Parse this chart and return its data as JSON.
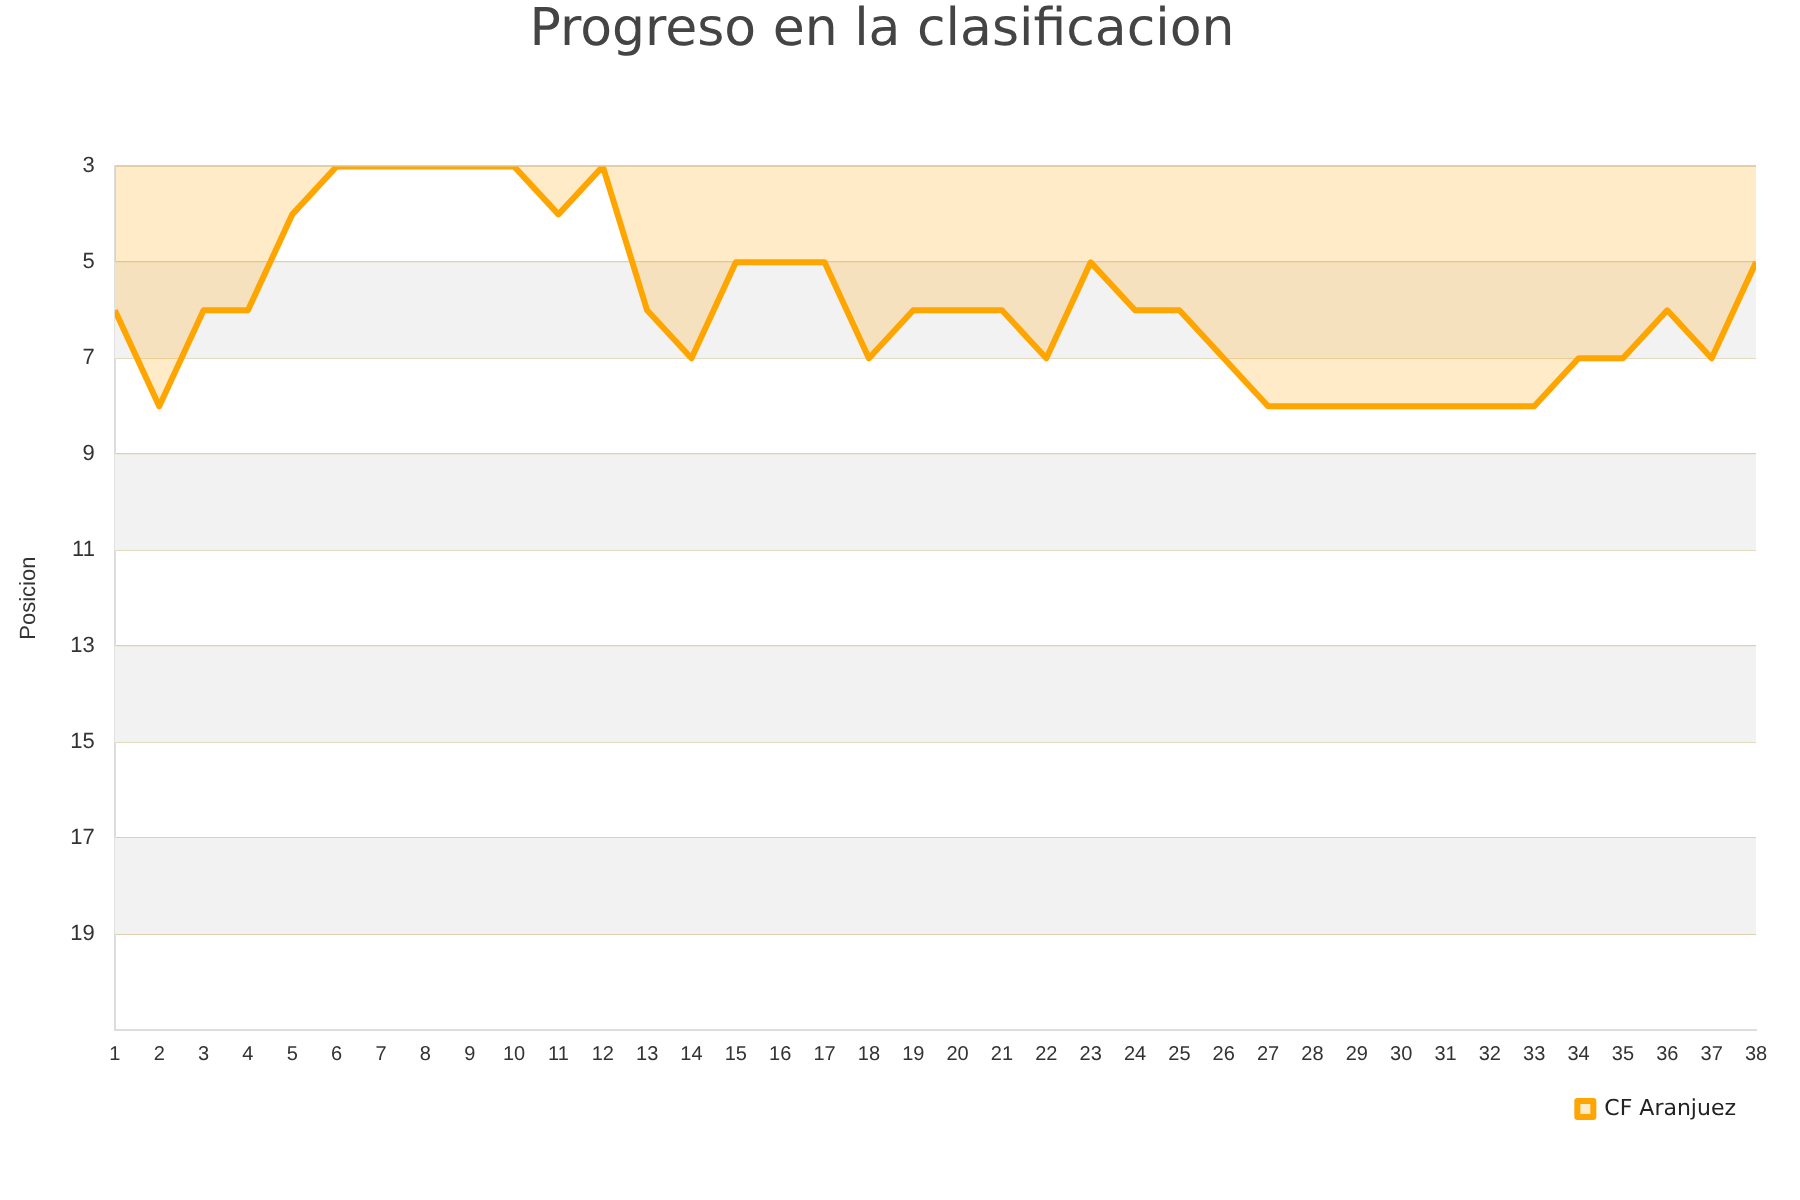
{
  "chart_data": {
    "type": "area",
    "title": "Progreso en la clasificacion",
    "ylabel": "Posicion",
    "x": [
      1,
      2,
      3,
      4,
      5,
      6,
      7,
      8,
      9,
      10,
      11,
      12,
      13,
      14,
      15,
      16,
      17,
      18,
      19,
      20,
      21,
      22,
      23,
      24,
      25,
      26,
      27,
      28,
      29,
      30,
      31,
      32,
      33,
      34,
      35,
      36,
      37,
      38
    ],
    "xlim": [
      1,
      38
    ],
    "xticks": [
      1,
      2,
      3,
      4,
      5,
      6,
      7,
      8,
      9,
      10,
      11,
      12,
      13,
      14,
      15,
      16,
      17,
      18,
      19,
      20,
      21,
      22,
      23,
      24,
      25,
      26,
      27,
      28,
      29,
      30,
      31,
      32,
      33,
      34,
      35,
      36,
      37,
      38
    ],
    "series": [
      {
        "name": "CF Aranjuez",
        "color": "#ffa500",
        "values": [
          6,
          8,
          6,
          6,
          4,
          3,
          3,
          3,
          3,
          3,
          4,
          3,
          6,
          7,
          5,
          5,
          5,
          7,
          6,
          6,
          6,
          7,
          5,
          6,
          6,
          7,
          8,
          8,
          8,
          8,
          8,
          8,
          8,
          7,
          7,
          6,
          7,
          5
        ]
      }
    ],
    "ylim": [
      21,
      3
    ],
    "yticks": [
      3,
      5,
      7,
      9,
      11,
      13,
      15,
      17,
      19
    ],
    "bands": [
      {
        "axis": "y",
        "from": 5,
        "to": 7,
        "color": "#f2f2f2"
      },
      {
        "axis": "y",
        "from": 9,
        "to": 11,
        "color": "#f2f2f2"
      },
      {
        "axis": "y",
        "from": 13,
        "to": 15,
        "color": "#f2f2f2"
      },
      {
        "axis": "y",
        "from": 17,
        "to": 19,
        "color": "#f2f2f2"
      }
    ],
    "grid": "y",
    "legend": "bottom right",
    "marker": "none",
    "line_style": "solid"
  }
}
